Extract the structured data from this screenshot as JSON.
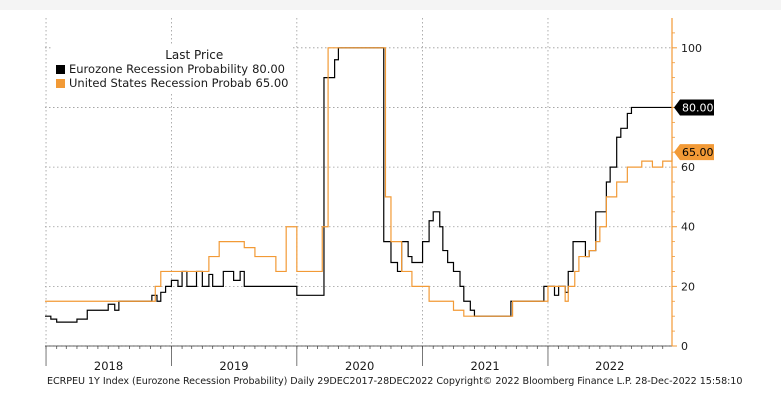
{
  "chart_data": {
    "type": "line",
    "legend": {
      "title": "Last Price",
      "placement": "top-left",
      "entries": [
        {
          "name": "Eurozone Recession Probability",
          "last": "80.00"
        },
        {
          "name": "United States Recession Probab",
          "last": "65.00"
        }
      ]
    },
    "x_tick_labels": [
      "2018",
      "2019",
      "2020",
      "2021",
      "2022"
    ],
    "y_tick_labels": [
      "0",
      "20",
      "40",
      "60",
      "80",
      "100"
    ],
    "ylim": [
      0,
      110
    ],
    "xlim": [
      "2017-12-29",
      "2022-12-28"
    ],
    "grid": true,
    "last_price_tags": [
      "80.00",
      "65.00"
    ],
    "colors": {
      "eurozone": "#000000",
      "us": "#f29a36",
      "grid": "#9a9a9a",
      "axis": "#f29a36"
    },
    "series": [
      {
        "name": "Eurozone Recession Probability",
        "color": "#000000",
        "points": [
          [
            "2017-12-29",
            10
          ],
          [
            "2018-01-15",
            9
          ],
          [
            "2018-02-01",
            8
          ],
          [
            "2018-04-01",
            9
          ],
          [
            "2018-05-01",
            12
          ],
          [
            "2018-06-15",
            12
          ],
          [
            "2018-07-01",
            14
          ],
          [
            "2018-07-20",
            12
          ],
          [
            "2018-08-01",
            15
          ],
          [
            "2018-09-01",
            15
          ],
          [
            "2018-10-01",
            15
          ],
          [
            "2018-11-05",
            17
          ],
          [
            "2018-11-20",
            15
          ],
          [
            "2018-12-01",
            18
          ],
          [
            "2018-12-15",
            20
          ],
          [
            "2019-01-01",
            22
          ],
          [
            "2019-01-20",
            20
          ],
          [
            "2019-02-01",
            25
          ],
          [
            "2019-02-15",
            20
          ],
          [
            "2019-03-01",
            20
          ],
          [
            "2019-03-15",
            25
          ],
          [
            "2019-04-01",
            20
          ],
          [
            "2019-04-20",
            24
          ],
          [
            "2019-05-01",
            20
          ],
          [
            "2019-05-15",
            20
          ],
          [
            "2019-06-01",
            25
          ],
          [
            "2019-06-20",
            25
          ],
          [
            "2019-07-01",
            22
          ],
          [
            "2019-07-20",
            25
          ],
          [
            "2019-08-01",
            20
          ],
          [
            "2019-10-01",
            20
          ],
          [
            "2019-12-01",
            20
          ],
          [
            "2020-01-01",
            17
          ],
          [
            "2020-03-05",
            17
          ],
          [
            "2020-03-20",
            90
          ],
          [
            "2020-04-20",
            96
          ],
          [
            "2020-05-01",
            100
          ],
          [
            "2020-09-01",
            100
          ],
          [
            "2020-09-10",
            35
          ],
          [
            "2020-10-01",
            28
          ],
          [
            "2020-10-20",
            25
          ],
          [
            "2020-11-01",
            35
          ],
          [
            "2020-11-20",
            30
          ],
          [
            "2020-12-01",
            28
          ],
          [
            "2021-01-01",
            35
          ],
          [
            "2021-01-20",
            42
          ],
          [
            "2021-02-01",
            45
          ],
          [
            "2021-02-20",
            40
          ],
          [
            "2021-03-01",
            32
          ],
          [
            "2021-03-15",
            28
          ],
          [
            "2021-04-01",
            25
          ],
          [
            "2021-04-20",
            20
          ],
          [
            "2021-05-01",
            15
          ],
          [
            "2021-05-20",
            12
          ],
          [
            "2021-06-01",
            10
          ],
          [
            "2021-09-01",
            10
          ],
          [
            "2021-09-15",
            15
          ],
          [
            "2021-12-01",
            15
          ],
          [
            "2021-12-20",
            20
          ],
          [
            "2022-01-20",
            17
          ],
          [
            "2022-02-01",
            20
          ],
          [
            "2022-02-20",
            18
          ],
          [
            "2022-03-01",
            25
          ],
          [
            "2022-03-15",
            35
          ],
          [
            "2022-04-01",
            35
          ],
          [
            "2022-04-20",
            30
          ],
          [
            "2022-05-01",
            32
          ],
          [
            "2022-05-20",
            45
          ],
          [
            "2022-06-01",
            45
          ],
          [
            "2022-06-20",
            55
          ],
          [
            "2022-07-01",
            60
          ],
          [
            "2022-07-20",
            70
          ],
          [
            "2022-08-01",
            73
          ],
          [
            "2022-08-20",
            78
          ],
          [
            "2022-09-01",
            80
          ],
          [
            "2022-12-28",
            80
          ]
        ]
      },
      {
        "name": "United States Recession Probab",
        "color": "#f29a36",
        "points": [
          [
            "2017-12-29",
            15
          ],
          [
            "2018-11-01",
            15
          ],
          [
            "2018-11-15",
            20
          ],
          [
            "2018-12-01",
            25
          ],
          [
            "2019-04-01",
            25
          ],
          [
            "2019-04-20",
            30
          ],
          [
            "2019-05-20",
            35
          ],
          [
            "2019-08-01",
            33
          ],
          [
            "2019-09-01",
            30
          ],
          [
            "2019-11-01",
            25
          ],
          [
            "2019-12-01",
            40
          ],
          [
            "2020-01-01",
            25
          ],
          [
            "2020-03-15",
            40
          ],
          [
            "2020-04-01",
            100
          ],
          [
            "2020-09-01",
            100
          ],
          [
            "2020-09-15",
            50
          ],
          [
            "2020-10-01",
            35
          ],
          [
            "2020-11-01",
            25
          ],
          [
            "2020-12-01",
            20
          ],
          [
            "2021-01-01",
            20
          ],
          [
            "2021-01-20",
            15
          ],
          [
            "2021-03-01",
            15
          ],
          [
            "2021-04-01",
            12
          ],
          [
            "2021-05-01",
            10
          ],
          [
            "2021-09-01",
            10
          ],
          [
            "2021-09-20",
            15
          ],
          [
            "2021-12-01",
            15
          ],
          [
            "2022-01-01",
            20
          ],
          [
            "2022-02-01",
            20
          ],
          [
            "2022-02-20",
            15
          ],
          [
            "2022-03-01",
            20
          ],
          [
            "2022-03-20",
            25
          ],
          [
            "2022-04-01",
            30
          ],
          [
            "2022-05-01",
            32
          ],
          [
            "2022-05-20",
            35
          ],
          [
            "2022-06-01",
            40
          ],
          [
            "2022-06-20",
            50
          ],
          [
            "2022-07-01",
            50
          ],
          [
            "2022-07-20",
            55
          ],
          [
            "2022-08-20",
            60
          ],
          [
            "2022-10-01",
            62
          ],
          [
            "2022-11-01",
            60
          ],
          [
            "2022-12-01",
            62
          ],
          [
            "2022-12-28",
            65
          ]
        ]
      }
    ]
  },
  "footer": "ECRPEU 1Y Index (Eurozone Recession Probability) Daily 29DEC2017-28DEC2022 Copyright© 2022 Bloomberg Finance L.P. 28-Dec-2022 15:58:10"
}
